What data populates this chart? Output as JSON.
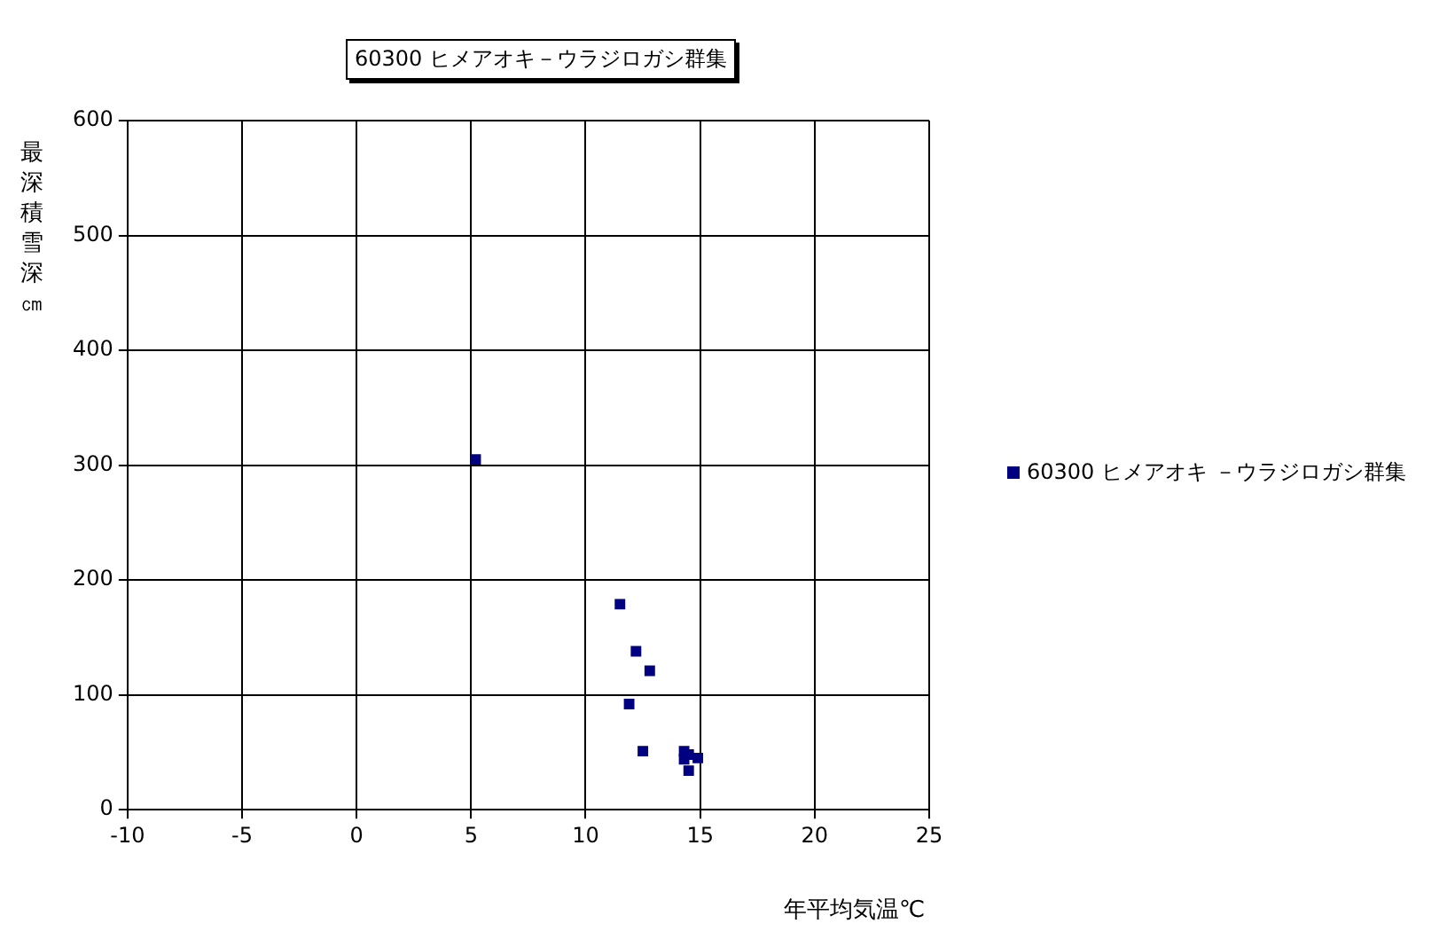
{
  "chart_data": {
    "type": "scatter",
    "title": "60300 ヒメアオキ－ウラジロガシ群集",
    "xlabel": "年平均気温℃",
    "ylabel": "最深積雪深㎝",
    "series": [
      {
        "name": "60300 ヒメアオキ －ウラジロガシ群集",
        "color": "#000080",
        "x": [
          5.2,
          11.5,
          12.2,
          12.8,
          11.9,
          12.5,
          14.3,
          14.5,
          14.9,
          14.5,
          14.3
        ],
        "values": [
          305,
          179,
          138,
          121,
          92,
          51,
          51,
          48,
          45,
          34,
          44
        ]
      }
    ],
    "xlim": [
      -10,
      25
    ],
    "xticks": [
      -10,
      -5,
      0,
      5,
      10,
      15,
      20,
      25
    ],
    "ylim": [
      0,
      600
    ],
    "yticks": [
      0,
      100,
      200,
      300,
      400,
      500,
      600
    ],
    "grid": true,
    "legend": "right",
    "marker": "square"
  }
}
